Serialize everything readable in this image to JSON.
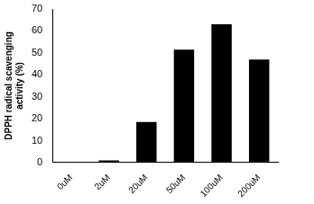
{
  "chart_data": {
    "type": "bar",
    "y_label": "DPPH radical scavenging activity (%)",
    "categories": [
      "0uM",
      "2uM",
      "20uM",
      "50uM",
      "100uM",
      "200uM"
    ],
    "values": [
      0,
      1,
      18.5,
      51.5,
      63,
      47
    ],
    "color": "#000000",
    "ylim": [
      0,
      70
    ],
    "yticks": [
      0,
      10,
      20,
      30,
      40,
      50,
      60,
      70
    ],
    "grid": false
  }
}
